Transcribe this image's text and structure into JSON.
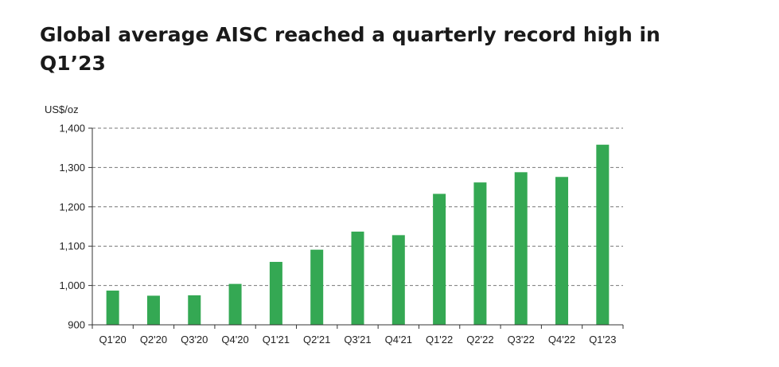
{
  "chart_data": {
    "type": "bar",
    "title_lines": [
      "Global average AISC reached a quarterly record high in",
      "Q1’23"
    ],
    "ylabel": "US$/oz",
    "xlabel": "",
    "categories": [
      "Q1'20",
      "Q2'20",
      "Q3'20",
      "Q4'20",
      "Q1'21",
      "Q2'21",
      "Q3'21",
      "Q4'21",
      "Q1'22",
      "Q2'22",
      "Q3'22",
      "Q4'22",
      "Q1'23"
    ],
    "values": [
      987,
      974,
      975,
      1004,
      1060,
      1091,
      1137,
      1128,
      1233,
      1262,
      1288,
      1276,
      1358
    ],
    "ylim": [
      900,
      1400
    ],
    "yticks": [
      900,
      1000,
      1100,
      1200,
      1300,
      1400
    ],
    "ytick_labels": [
      "900",
      "1,000",
      "1,100",
      "1,200",
      "1,300",
      "1,400"
    ],
    "grid": "horizontal-dashed",
    "bar_color": "#34a853",
    "axis_color": "#333333",
    "grid_color": "#777777"
  }
}
